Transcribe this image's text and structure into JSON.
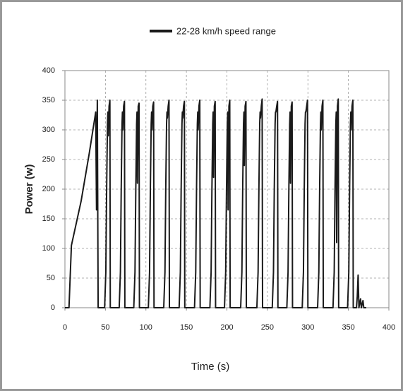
{
  "chart_data": {
    "type": "line",
    "x_label": "Time (s)",
    "y_label": "Power (w)",
    "legend": "top",
    "grid": true,
    "xlim": [
      0,
      400
    ],
    "xticks": [
      0,
      50,
      100,
      150,
      200,
      250,
      300,
      350,
      400
    ],
    "ylim": [
      0,
      400
    ],
    "yticks": [
      0,
      50,
      100,
      150,
      200,
      250,
      300,
      350,
      400
    ],
    "x": [
      0,
      5,
      8,
      20,
      30,
      38,
      39,
      40,
      41,
      49,
      50.5,
      51.5,
      52.5,
      53,
      53.5,
      54.5,
      55.5,
      56,
      67,
      68.5,
      69.5,
      70.5,
      71,
      71.5,
      72.5,
      73.5,
      74,
      85,
      86.5,
      87.5,
      88.5,
      89,
      89.5,
      90.5,
      91.5,
      92,
      103,
      104.5,
      105.5,
      106.5,
      107,
      107.5,
      108.5,
      109.5,
      110,
      122,
      123.5,
      124.5,
      125.5,
      126,
      126.5,
      127.5,
      128.5,
      129,
      141,
      142.5,
      143.5,
      144.5,
      145,
      145.5,
      146.5,
      147.5,
      148,
      160,
      161.5,
      162.5,
      163.5,
      164,
      164.5,
      165.5,
      166.5,
      167,
      179,
      180.5,
      181.5,
      182.5,
      183,
      183.5,
      184.5,
      185.5,
      186,
      197,
      198.5,
      199.5,
      200.5,
      201,
      201.5,
      202.5,
      203.5,
      204,
      217,
      218.5,
      219.5,
      220.5,
      221,
      221.5,
      222.5,
      223.5,
      224,
      237,
      238.5,
      239.5,
      240.5,
      241,
      241.5,
      242.5,
      243.5,
      244,
      256,
      257.5,
      258.5,
      259.5,
      260,
      260.5,
      261.5,
      262.5,
      263,
      274,
      275.5,
      276.5,
      277.5,
      278,
      278.5,
      279.5,
      280.5,
      281,
      293,
      294.5,
      295.5,
      296.5,
      297,
      297.5,
      298.5,
      299.5,
      300,
      312,
      313.5,
      314.5,
      315.5,
      316,
      316.5,
      317.5,
      318.5,
      319,
      331,
      332.5,
      333.5,
      334.5,
      335,
      335.5,
      336.5,
      337.5,
      338,
      349,
      350.5,
      351.5,
      352.5,
      353,
      353.5,
      354.5,
      355.5,
      356,
      360,
      361,
      362,
      363,
      365,
      366,
      368,
      369,
      372
    ],
    "series": [
      {
        "name": "22-28 km/h speed range",
        "color": "#1a1a1a",
        "values": [
          0,
          0,
          105,
          180,
          260,
          330,
          165,
          350,
          0,
          0,
          60,
          200,
          310,
          330,
          290,
          340,
          350,
          0,
          0,
          60,
          200,
          310,
          330,
          300,
          340,
          348,
          0,
          0,
          60,
          200,
          310,
          330,
          210,
          340,
          345,
          0,
          0,
          60,
          200,
          310,
          330,
          300,
          340,
          347,
          0,
          0,
          60,
          200,
          310,
          330,
          320,
          340,
          350,
          0,
          0,
          60,
          200,
          310,
          330,
          320,
          340,
          348,
          0,
          0,
          60,
          200,
          310,
          330,
          300,
          340,
          350,
          0,
          0,
          60,
          200,
          310,
          330,
          220,
          340,
          348,
          0,
          0,
          60,
          200,
          310,
          330,
          165,
          340,
          350,
          0,
          0,
          60,
          200,
          310,
          330,
          240,
          340,
          348,
          0,
          0,
          60,
          200,
          310,
          330,
          320,
          340,
          352,
          0,
          0,
          60,
          200,
          310,
          330,
          330,
          340,
          348,
          0,
          0,
          60,
          200,
          310,
          330,
          210,
          340,
          347,
          0,
          0,
          60,
          200,
          310,
          330,
          330,
          340,
          350,
          0,
          0,
          60,
          200,
          310,
          330,
          300,
          340,
          350,
          0,
          0,
          60,
          200,
          310,
          330,
          110,
          340,
          352,
          0,
          0,
          60,
          200,
          310,
          330,
          300,
          340,
          350,
          0,
          0,
          20,
          55,
          0,
          15,
          0,
          12,
          0,
          0
        ]
      }
    ]
  }
}
